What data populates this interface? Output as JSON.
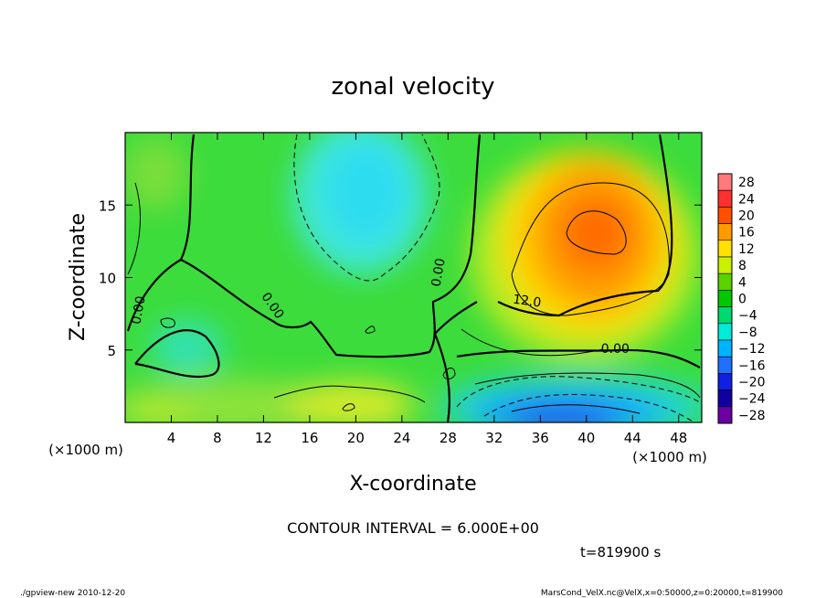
{
  "chart_data": {
    "type": "heatmap",
    "title": "zonal velocity",
    "xlabel": "X-coordinate",
    "ylabel": "Z-coordinate",
    "x_unit": "(×1000 m)",
    "y_unit": "(×1000 m)",
    "xlim": [
      0,
      50
    ],
    "ylim": [
      0,
      20
    ],
    "x_ticks": [
      4,
      8,
      12,
      16,
      20,
      24,
      28,
      32,
      36,
      40,
      44,
      48
    ],
    "y_ticks": [
      5,
      10,
      15
    ],
    "contour_interval_text": "CONTOUR INTERVAL = 6.000E+00",
    "contour_labels": [
      {
        "text": "0.00",
        "x": 1.5,
        "z": 7.7
      },
      {
        "text": "0.00",
        "x": 12.5,
        "z": 7.9
      },
      {
        "text": "0.00",
        "x": 27.5,
        "z": 10.3
      },
      {
        "text": "12.0",
        "x": 34.8,
        "z": 8.1
      },
      {
        "text": "0.00",
        "x": 42.5,
        "z": 4.8
      }
    ],
    "features": [
      {
        "kind": "max",
        "x": 41.2,
        "z": 13.3,
        "value": 20
      },
      {
        "kind": "min",
        "x": 38.5,
        "z": 0.8,
        "value": -22
      },
      {
        "kind": "min",
        "x": 20,
        "z": 15,
        "value": -9
      }
    ],
    "colorbar": {
      "labels": [
        "28",
        "24",
        "20",
        "16",
        "12",
        "8",
        "4",
        "0",
        "−4",
        "−8",
        "−12",
        "−16",
        "−20",
        "−24",
        "−28"
      ],
      "values": [
        28,
        24,
        20,
        16,
        12,
        8,
        4,
        0,
        -4,
        -8,
        -12,
        -16,
        -20,
        -24,
        -28
      ],
      "colors": [
        "#ff7a7a",
        "#ff3030",
        "#ff5000",
        "#ff9a00",
        "#ffe000",
        "#c8f000",
        "#5ad200",
        "#00c800",
        "#00d870",
        "#00ecd8",
        "#00b4ff",
        "#2070ff",
        "#1020e0",
        "#1000a0",
        "#6a00a0"
      ]
    },
    "grid": false
  },
  "footer": {
    "time_label": "t=819900 s",
    "left_info": "./gpview-new  2010-12-20",
    "right_info": "MarsCond_VelX.nc@VelX,x=0:50000,z=0:20000,t=819900"
  }
}
